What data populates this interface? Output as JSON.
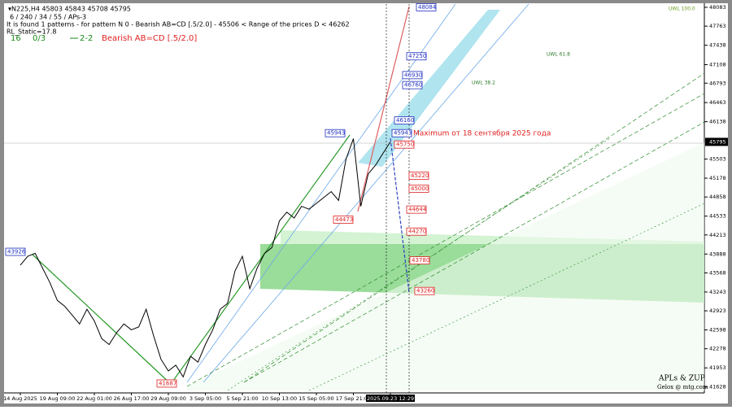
{
  "chart_data": {
    "type": "line",
    "header": {
      "symbol_line": "▾N225,H4  45803 45843 45708 45795",
      "params_line": "6 / 240 / 34 / 55 / APs-3",
      "pattern_line": "It is found 1 patterns  -  for pattern N 0 - Bearish AB=CD [.5/2.0] - 45506 < Range of the prices D < 46262",
      "static_line": "RL_Static=17.8",
      "count": "16",
      "ratio": "0/3",
      "mode": "2-2",
      "pattern_name": "Bearish AB=CD [.5/2.0]"
    },
    "annotation": "Maximum от 18 сентября 2025 года",
    "watermark": [
      "APLs & ZUP",
      "Gelox @ mtg.com"
    ],
    "fib_labels": [
      "UWL 100.0",
      "UWL 61.8",
      "UWL 38.2"
    ],
    "color": "#000000",
    "categories": [
      "14 Aug 2025",
      null,
      null,
      null,
      null,
      "19 Aug 09:00",
      null,
      null,
      null,
      null,
      "22 Aug 01:00",
      null,
      null,
      null,
      null,
      "26 Aug 17:00",
      null,
      null,
      null,
      null,
      "29 Aug 09:00",
      null,
      null,
      null,
      null,
      "3 Sep 05:00",
      null,
      null,
      null,
      null,
      "5 Sep 21:00",
      null,
      null,
      null,
      null,
      "10 Sep 13:00",
      null,
      null,
      null,
      null,
      "15 Sep 05:00",
      null,
      null,
      null,
      null,
      "17 Sep 21:00",
      null,
      null,
      null,
      null,
      "2025.09.23 12:29"
    ],
    "values": [
      43700,
      43850,
      43900,
      43650,
      43400,
      43100,
      43000,
      42850,
      42700,
      42950,
      42750,
      42450,
      42350,
      42550,
      42700,
      42600,
      42650,
      42950,
      42500,
      42100,
      41900,
      42000,
      41800,
      42150,
      42050,
      42350,
      42600,
      42950,
      43050,
      43600,
      43850,
      43300,
      43650,
      43900,
      44000,
      44450,
      44600,
      44500,
      44700,
      44650,
      44750,
      44850,
      44950,
      44800,
      45500,
      45850,
      44700,
      45250,
      45400,
      45600,
      45795
    ],
    "current_price": 45795,
    "pattern_points": [
      43926,
      45943,
      44473,
      41687
    ],
    "blue_levels": [
      48084,
      47250,
      46930,
      46760,
      46160,
      45943
    ],
    "red_levels": [
      45750,
      45220,
      45000,
      44644,
      44270,
      43780,
      43260
    ],
    "ylim": [
      41541,
      48138
    ],
    "yticks": [
      48083,
      47763,
      47438,
      47108,
      46793,
      46463,
      46138,
      45503,
      45178,
      44858,
      44533,
      44213,
      43888,
      43568,
      43243,
      42923,
      42598,
      42278,
      41953,
      41628
    ]
  }
}
